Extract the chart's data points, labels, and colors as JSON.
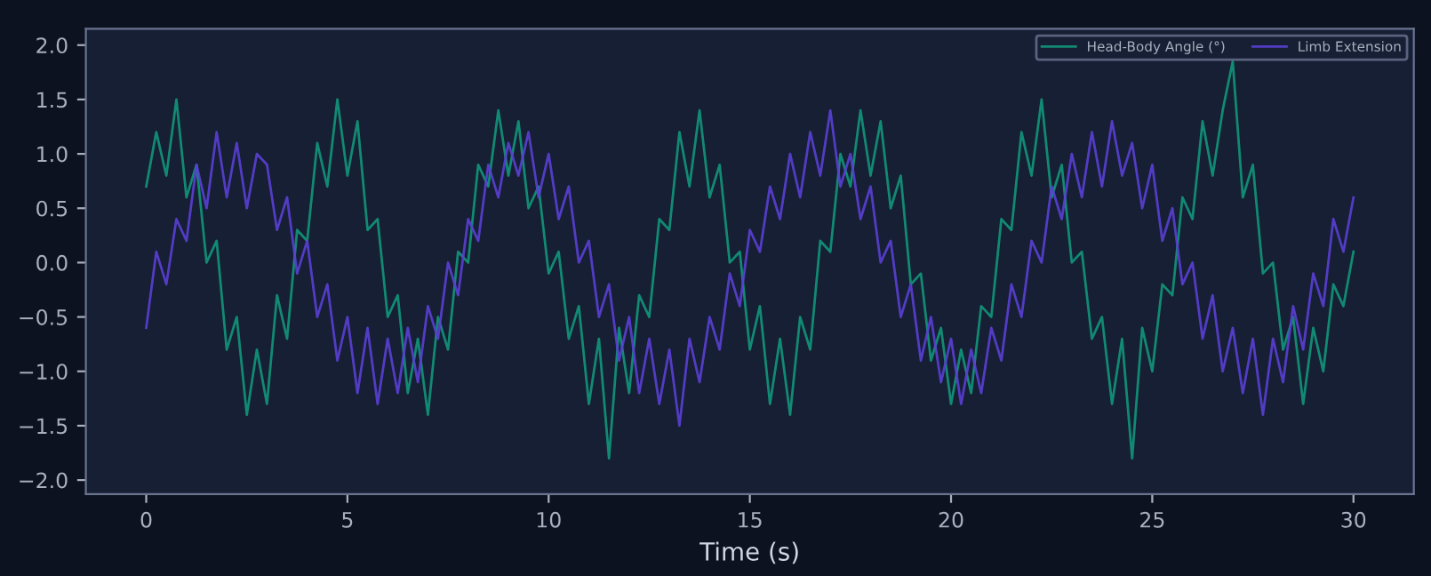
{
  "chart_data": {
    "type": "line",
    "xlabel": "Time (s)",
    "x": [
      0,
      0.25,
      0.5,
      0.75,
      1,
      1.25,
      1.5,
      1.75,
      2,
      2.25,
      2.5,
      2.75,
      3,
      3.25,
      3.5,
      3.75,
      4,
      4.25,
      4.5,
      4.75,
      5,
      5.25,
      5.5,
      5.75,
      6,
      6.25,
      6.5,
      6.75,
      7,
      7.25,
      7.5,
      7.75,
      8,
      8.25,
      8.5,
      8.75,
      9,
      9.25,
      9.5,
      9.75,
      10,
      10.25,
      10.5,
      10.75,
      11,
      11.25,
      11.5,
      11.75,
      12,
      12.25,
      12.5,
      12.75,
      13,
      13.25,
      13.5,
      13.75,
      14,
      14.25,
      14.5,
      14.75,
      15,
      15.25,
      15.5,
      15.75,
      16,
      16.25,
      16.5,
      16.75,
      17,
      17.25,
      17.5,
      17.75,
      18,
      18.25,
      18.5,
      18.75,
      19,
      19.25,
      19.5,
      19.75,
      20,
      20.25,
      20.5,
      20.75,
      21,
      21.25,
      21.5,
      21.75,
      22,
      22.25,
      22.5,
      22.75,
      23,
      23.25,
      23.5,
      23.75,
      24,
      24.25,
      24.5,
      24.75,
      25,
      25.25,
      25.5,
      25.75,
      26,
      26.25,
      26.5,
      26.75,
      27,
      27.25,
      27.5,
      27.75,
      28,
      28.25,
      28.5,
      28.75,
      29,
      29.25,
      29.5,
      29.75,
      30
    ],
    "series": [
      {
        "name": "Head-Body Angle (°)",
        "color": "#12957a",
        "values": [
          0.7,
          1.2,
          0.8,
          1.5,
          0.6,
          0.9,
          0.0,
          0.2,
          -0.8,
          -0.5,
          -1.4,
          -0.8,
          -1.3,
          -0.3,
          -0.7,
          0.3,
          0.2,
          1.1,
          0.7,
          1.5,
          0.8,
          1.3,
          0.3,
          0.4,
          -0.5,
          -0.3,
          -1.2,
          -0.7,
          -1.4,
          -0.5,
          -0.8,
          0.1,
          0.0,
          0.9,
          0.7,
          1.4,
          0.8,
          1.3,
          0.5,
          0.7,
          -0.1,
          0.1,
          -0.7,
          -0.4,
          -1.3,
          -0.7,
          -1.8,
          -0.6,
          -1.2,
          -0.3,
          -0.5,
          0.4,
          0.3,
          1.2,
          0.7,
          1.4,
          0.6,
          0.9,
          0.0,
          0.1,
          -0.8,
          -0.4,
          -1.3,
          -0.7,
          -1.4,
          -0.5,
          -0.8,
          0.2,
          0.1,
          1.0,
          0.7,
          1.4,
          0.8,
          1.3,
          0.5,
          0.8,
          -0.2,
          -0.1,
          -0.9,
          -0.6,
          -1.3,
          -0.8,
          -1.2,
          -0.4,
          -0.5,
          0.4,
          0.3,
          1.2,
          0.8,
          1.5,
          0.6,
          0.9,
          0.0,
          0.1,
          -0.7,
          -0.5,
          -1.3,
          -0.7,
          -1.8,
          -0.6,
          -1.0,
          -0.2,
          -0.3,
          0.6,
          0.4,
          1.3,
          0.8,
          1.4,
          1.85,
          0.6,
          0.9,
          -0.1,
          0.0,
          -0.8,
          -0.5,
          -1.3,
          -0.6,
          -1.0,
          -0.2,
          -0.4,
          0.1
        ]
      },
      {
        "name": "Limb Extension",
        "color": "#5a3fd4",
        "values": [
          -0.6,
          0.1,
          -0.2,
          0.4,
          0.2,
          0.9,
          0.5,
          1.2,
          0.6,
          1.1,
          0.5,
          1.0,
          0.9,
          0.3,
          0.6,
          -0.1,
          0.2,
          -0.5,
          -0.2,
          -0.9,
          -0.5,
          -1.2,
          -0.6,
          -1.3,
          -0.7,
          -1.2,
          -0.6,
          -1.1,
          -0.4,
          -0.7,
          0.0,
          -0.3,
          0.4,
          0.2,
          0.9,
          0.6,
          1.1,
          0.8,
          1.2,
          0.6,
          1.0,
          0.4,
          0.7,
          0.0,
          0.2,
          -0.5,
          -0.2,
          -0.9,
          -0.5,
          -1.2,
          -0.7,
          -1.3,
          -0.8,
          -1.5,
          -0.7,
          -1.1,
          -0.5,
          -0.8,
          -0.1,
          -0.4,
          0.3,
          0.1,
          0.7,
          0.4,
          1.0,
          0.6,
          1.2,
          0.8,
          1.4,
          0.7,
          1.0,
          0.4,
          0.7,
          0.0,
          0.2,
          -0.5,
          -0.2,
          -0.9,
          -0.5,
          -1.1,
          -0.7,
          -1.3,
          -0.8,
          -1.2,
          -0.6,
          -0.9,
          -0.2,
          -0.5,
          0.2,
          0.0,
          0.7,
          0.4,
          1.0,
          0.6,
          1.2,
          0.7,
          1.3,
          0.8,
          1.1,
          0.5,
          0.9,
          0.2,
          0.5,
          -0.2,
          0.0,
          -0.7,
          -0.3,
          -1.0,
          -0.6,
          -1.2,
          -0.7,
          -1.4,
          -0.7,
          -1.1,
          -0.4,
          -0.8,
          -0.1,
          -0.4,
          0.4,
          0.1,
          0.6
        ]
      }
    ],
    "xlim": [
      -1.5,
      31.5
    ],
    "ylim": [
      -2.13,
      2.15
    ],
    "xticks": [
      0,
      5,
      10,
      15,
      20,
      25,
      30
    ],
    "yticks": [
      {
        "value": -2.0,
        "label": "−2.0"
      },
      {
        "value": -1.5,
        "label": "−1.5"
      },
      {
        "value": -1.0,
        "label": "−1.0"
      },
      {
        "value": -0.5,
        "label": "−0.5"
      },
      {
        "value": 0.0,
        "label": "0.0"
      },
      {
        "value": 0.5,
        "label": "0.5"
      },
      {
        "value": 1.0,
        "label": "1.0"
      },
      {
        "value": 1.5,
        "label": "1.5"
      },
      {
        "value": 2.0,
        "label": "2.0"
      }
    ],
    "grid": false,
    "legend": "top right",
    "marker": "none",
    "line_style": "solid"
  }
}
